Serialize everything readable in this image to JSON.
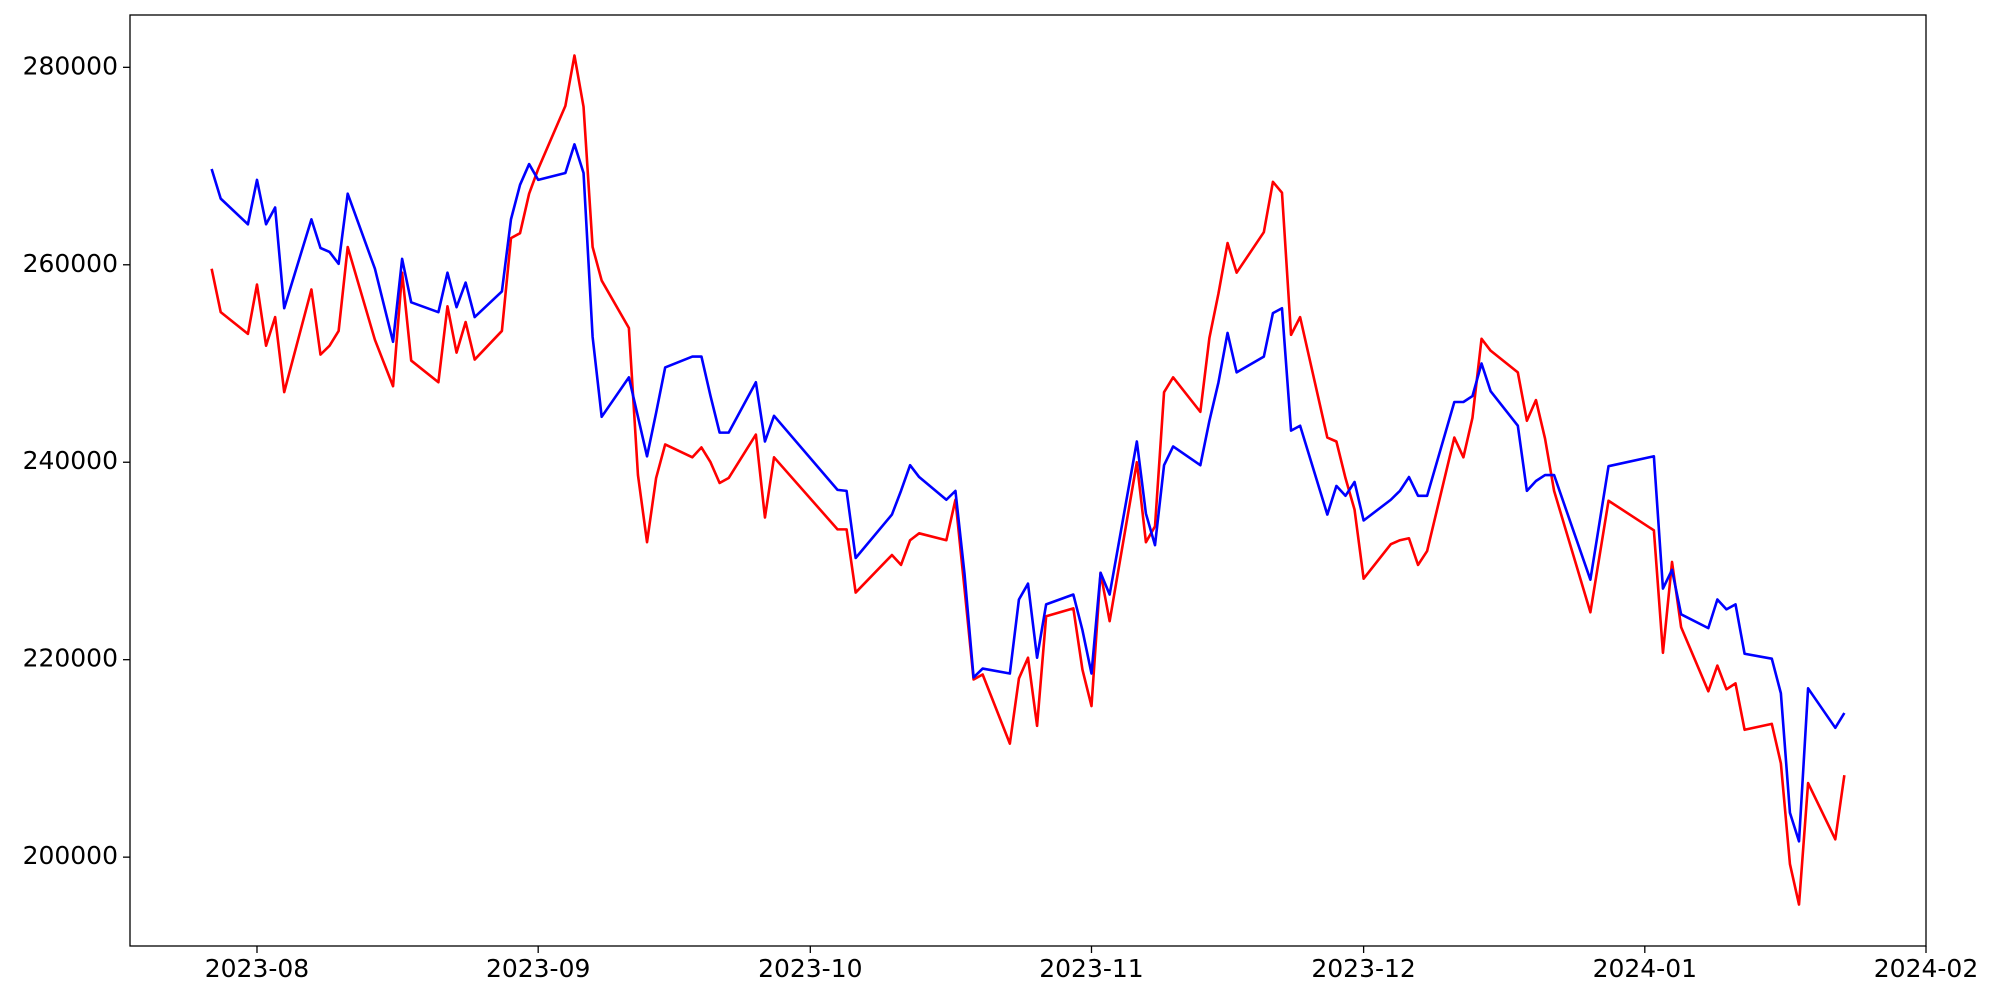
{
  "chart_data": {
    "type": "line",
    "x": [
      "2023-07-27",
      "2023-07-28",
      "2023-07-31",
      "2023-08-01",
      "2023-08-02",
      "2023-08-03",
      "2023-08-04",
      "2023-08-07",
      "2023-08-08",
      "2023-08-09",
      "2023-08-10",
      "2023-08-11",
      "2023-08-14",
      "2023-08-16",
      "2023-08-17",
      "2023-08-18",
      "2023-08-21",
      "2023-08-22",
      "2023-08-23",
      "2023-08-24",
      "2023-08-25",
      "2023-08-28",
      "2023-08-29",
      "2023-08-30",
      "2023-08-31",
      "2023-09-01",
      "2023-09-04",
      "2023-09-05",
      "2023-09-06",
      "2023-09-07",
      "2023-09-08",
      "2023-09-11",
      "2023-09-12",
      "2023-09-13",
      "2023-09-14",
      "2023-09-15",
      "2023-09-18",
      "2023-09-19",
      "2023-09-20",
      "2023-09-21",
      "2023-09-22",
      "2023-09-25",
      "2023-09-26",
      "2023-09-27",
      "2023-10-04",
      "2023-10-05",
      "2023-10-06",
      "2023-10-10",
      "2023-10-11",
      "2023-10-12",
      "2023-10-13",
      "2023-10-16",
      "2023-10-17",
      "2023-10-18",
      "2023-10-19",
      "2023-10-20",
      "2023-10-23",
      "2023-10-24",
      "2023-10-25",
      "2023-10-26",
      "2023-10-27",
      "2023-10-30",
      "2023-10-31",
      "2023-11-01",
      "2023-11-02",
      "2023-11-03",
      "2023-11-06",
      "2023-11-07",
      "2023-11-08",
      "2023-11-09",
      "2023-11-10",
      "2023-11-13",
      "2023-11-14",
      "2023-11-15",
      "2023-11-16",
      "2023-11-17",
      "2023-11-20",
      "2023-11-21",
      "2023-11-22",
      "2023-11-23",
      "2023-11-24",
      "2023-11-27",
      "2023-11-28",
      "2023-11-29",
      "2023-11-30",
      "2023-12-01",
      "2023-12-04",
      "2023-12-05",
      "2023-12-06",
      "2023-12-07",
      "2023-12-08",
      "2023-12-11",
      "2023-12-12",
      "2023-12-13",
      "2023-12-14",
      "2023-12-15",
      "2023-12-18",
      "2023-12-19",
      "2023-12-20",
      "2023-12-21",
      "2023-12-22",
      "2023-12-26",
      "2023-12-28",
      "2024-01-02",
      "2024-01-03",
      "2024-01-04",
      "2024-01-05",
      "2024-01-08",
      "2024-01-09",
      "2024-01-10",
      "2024-01-11",
      "2024-01-12",
      "2024-01-15",
      "2024-01-16",
      "2024-01-17",
      "2024-01-18",
      "2024-01-19",
      "2024-01-22",
      "2024-01-23"
    ],
    "series": [
      {
        "color": "#ff0000",
        "values": [
          259600,
          255200,
          253000,
          258000,
          251800,
          254700,
          247100,
          257500,
          250900,
          251800,
          253300,
          261800,
          252400,
          247700,
          259200,
          250300,
          248100,
          255800,
          251100,
          254200,
          250400,
          253300,
          262700,
          263200,
          267200,
          269700,
          276100,
          281200,
          276000,
          261800,
          258400,
          253600,
          238700,
          231900,
          238400,
          241800,
          240500,
          241500,
          240000,
          237900,
          238400,
          242800,
          234400,
          240500,
          233200,
          233200,
          226800,
          230600,
          229600,
          232100,
          232800,
          232100,
          236200,
          227200,
          218000,
          218500,
          211500,
          218100,
          220200,
          213300,
          224400,
          225200,
          219000,
          215300,
          228800,
          223900,
          240000,
          231900,
          233500,
          247100,
          248600,
          245100,
          252600,
          257100,
          262200,
          259200,
          263300,
          268400,
          267300,
          252900,
          254700,
          242500,
          242100,
          238400,
          235200,
          228200,
          231700,
          232100,
          232300,
          229600,
          231000,
          242500,
          240500,
          244500,
          252500,
          251300,
          249100,
          244200,
          246300,
          242400,
          237100,
          224800,
          236100,
          233100,
          220700,
          229900,
          223300,
          216800,
          219400,
          217000,
          217600,
          212900,
          213500,
          209500,
          199300,
          195200,
          207500,
          201800,
          208300
        ]
      },
      {
        "color": "#0000ff",
        "values": [
          269700,
          266700,
          264100,
          268600,
          264100,
          265800,
          255600,
          264600,
          261700,
          261300,
          260100,
          267200,
          259600,
          252200,
          260600,
          256200,
          255200,
          259200,
          255700,
          258200,
          254700,
          257300,
          264600,
          268100,
          270200,
          268600,
          269300,
          272200,
          269300,
          252700,
          244600,
          248600,
          244600,
          240600,
          245000,
          249600,
          250700,
          250700,
          246700,
          243000,
          243000,
          248100,
          242100,
          244700,
          237200,
          237100,
          230300,
          234700,
          237100,
          239700,
          238500,
          236200,
          237100,
          228700,
          218200,
          219100,
          218600,
          226100,
          227700,
          220200,
          225600,
          226600,
          223000,
          218600,
          228800,
          226600,
          242100,
          234800,
          231600,
          239700,
          241600,
          239700,
          244200,
          248100,
          253100,
          249100,
          250700,
          255100,
          255600,
          243200,
          243700,
          234700,
          237600,
          236600,
          238000,
          234100,
          236200,
          237100,
          238500,
          236600,
          236600,
          246100,
          246100,
          246700,
          250000,
          247200,
          243700,
          237100,
          238100,
          238700,
          238700,
          228100,
          239600,
          240600,
          227200,
          229100,
          224600,
          223200,
          226100,
          225100,
          225600,
          220600,
          220100,
          216600,
          204500,
          201600,
          217100,
          213100,
          214600
        ]
      }
    ],
    "xlim": [
      "2023-07-18",
      "2024-02-01"
    ],
    "xticks": [
      {
        "value": "2023-08-01",
        "label": "2023-08"
      },
      {
        "value": "2023-09-01",
        "label": "2023-09"
      },
      {
        "value": "2023-10-01",
        "label": "2023-10"
      },
      {
        "value": "2023-11-01",
        "label": "2023-11"
      },
      {
        "value": "2023-12-01",
        "label": "2023-12"
      },
      {
        "value": "2024-01-01",
        "label": "2024-01"
      },
      {
        "value": "2024-02-01",
        "label": "2024-02"
      }
    ],
    "ylim": [
      191000,
      285300
    ],
    "yticks": [
      200000,
      220000,
      240000,
      260000,
      280000
    ],
    "grid": false
  }
}
